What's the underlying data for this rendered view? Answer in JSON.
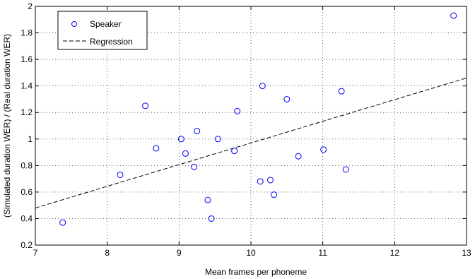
{
  "chart_data": {
    "type": "scatter",
    "xlabel": "Mean frames per phoneme",
    "ylabel": "(Simulated duration WER) / (Real duration WER)",
    "xlim": [
      7,
      13
    ],
    "ylim": [
      0.2,
      2
    ],
    "xticks": [
      "7",
      "8",
      "9",
      "10",
      "11",
      "12",
      "13"
    ],
    "yticks": [
      "0.2",
      "0.4",
      "0.6",
      "0.8",
      "1",
      "1.2",
      "1.4",
      "1.6",
      "1.8",
      "2"
    ],
    "grid": true,
    "legend_position": "top-left",
    "series": [
      {
        "name": "Speaker",
        "marker": "circle",
        "color": "#0000ff",
        "points": [
          [
            7.38,
            0.37
          ],
          [
            8.18,
            0.73
          ],
          [
            8.53,
            1.25
          ],
          [
            8.68,
            0.93
          ],
          [
            9.03,
            1.0
          ],
          [
            9.09,
            0.89
          ],
          [
            9.21,
            0.79
          ],
          [
            9.25,
            1.06
          ],
          [
            9.4,
            0.54
          ],
          [
            9.45,
            0.4
          ],
          [
            9.54,
            1.0
          ],
          [
            9.77,
            0.91
          ],
          [
            9.81,
            1.21
          ],
          [
            10.13,
            0.68
          ],
          [
            10.16,
            1.4
          ],
          [
            10.27,
            0.69
          ],
          [
            10.32,
            0.58
          ],
          [
            10.5,
            1.3
          ],
          [
            10.66,
            0.87
          ],
          [
            11.01,
            0.92
          ],
          [
            11.26,
            1.36
          ],
          [
            11.32,
            0.77
          ],
          [
            12.82,
            1.93
          ]
        ]
      },
      {
        "name": "Regression",
        "line_style": "dashed",
        "color": "#000000",
        "line": [
          [
            7,
            0.48
          ],
          [
            13,
            1.46
          ]
        ]
      }
    ]
  }
}
